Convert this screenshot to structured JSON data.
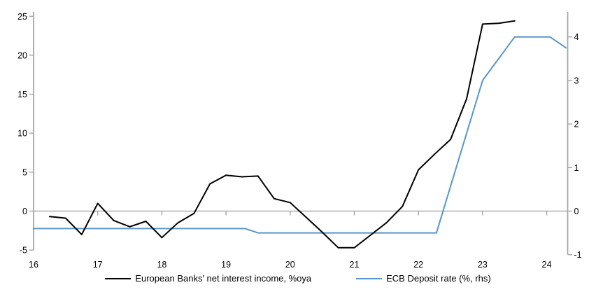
{
  "chart_data": {
    "type": "line",
    "title": "",
    "x_axis": {
      "label": "",
      "ticks": [
        16,
        17,
        18,
        19,
        20,
        21,
        22,
        23,
        24
      ],
      "range": [
        16,
        24.33
      ]
    },
    "left_axis": {
      "label": "",
      "ticks": [
        25,
        20,
        15,
        10,
        5,
        0,
        -5
      ],
      "range": [
        -5,
        25
      ]
    },
    "right_axis": {
      "label": "",
      "ticks": [
        4,
        3,
        2,
        1,
        0,
        -1
      ],
      "range": [
        -1,
        4.6
      ]
    },
    "grid": "zero-line-only",
    "legend_position": "bottom",
    "series": [
      {
        "name": "European Banks' net interest income, %oya",
        "axis": "left",
        "color": "#000000",
        "points": [
          [
            16.25,
            -0.7
          ],
          [
            16.5,
            -0.9
          ],
          [
            16.75,
            -3.0
          ],
          [
            17.0,
            1.0
          ],
          [
            17.25,
            -1.2
          ],
          [
            17.5,
            -2.0
          ],
          [
            17.75,
            -1.3
          ],
          [
            18.0,
            -3.4
          ],
          [
            18.25,
            -1.5
          ],
          [
            18.5,
            -0.3
          ],
          [
            18.75,
            3.5
          ],
          [
            19.0,
            4.6
          ],
          [
            19.25,
            4.4
          ],
          [
            19.5,
            4.5
          ],
          [
            19.75,
            1.6
          ],
          [
            20.0,
            1.1
          ],
          [
            20.25,
            -0.8
          ],
          [
            20.5,
            -2.7
          ],
          [
            20.75,
            -4.7
          ],
          [
            21.0,
            -4.7
          ],
          [
            21.25,
            -3.1
          ],
          [
            21.5,
            -1.5
          ],
          [
            21.75,
            0.6
          ],
          [
            22.0,
            5.3
          ],
          [
            22.25,
            7.3
          ],
          [
            22.5,
            9.2
          ],
          [
            22.75,
            14.4
          ],
          [
            23.0,
            24.0
          ],
          [
            23.25,
            24.1
          ],
          [
            23.5,
            24.4
          ]
        ]
      },
      {
        "name": "ECB Deposit rate (%, rhs)",
        "axis": "right",
        "color": "#5897C9",
        "points": [
          [
            16.0,
            -0.4
          ],
          [
            19.3,
            -0.4
          ],
          [
            19.5,
            -0.5
          ],
          [
            22.28,
            -0.5
          ],
          [
            23.0,
            3.0
          ],
          [
            23.5,
            4.0
          ],
          [
            24.05,
            4.0
          ],
          [
            24.3,
            3.75
          ]
        ]
      }
    ],
    "colors": {
      "axis_line": "#A6A6A6",
      "zero_gridline": "#AFAFAF",
      "series_nii": "#000000",
      "series_ecb": "#5897C9"
    }
  }
}
